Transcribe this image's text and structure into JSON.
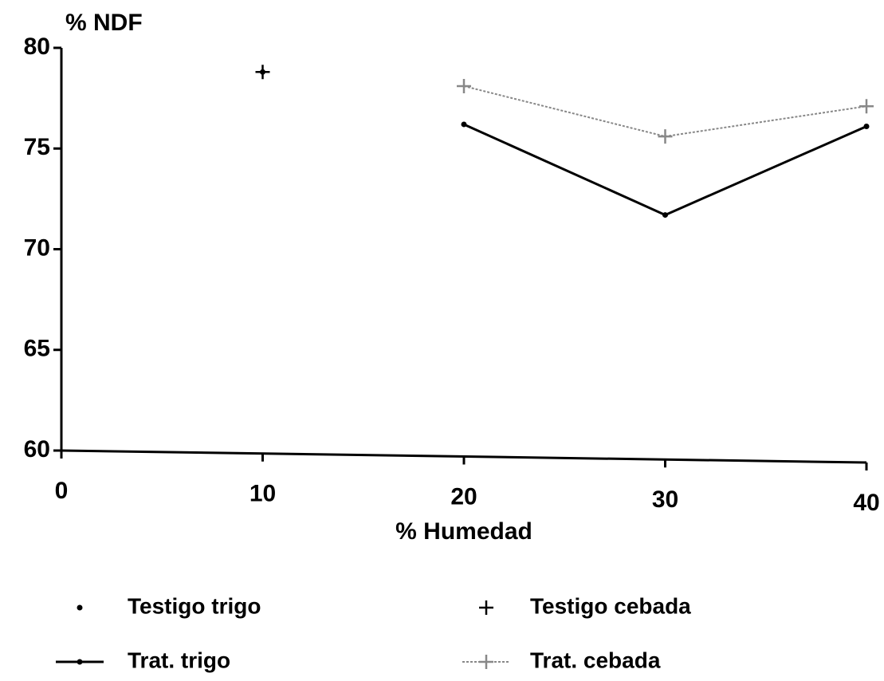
{
  "chart_data": {
    "type": "line",
    "xlabel": "% Humedad",
    "ylabel": "% NDF",
    "xlim": [
      0,
      40
    ],
    "xticks": [
      0,
      10,
      20,
      30,
      40
    ],
    "ylim": [
      60,
      80
    ],
    "yticks": [
      60,
      65,
      70,
      75,
      80
    ],
    "series": [
      {
        "name": "Testigo trigo",
        "color": "#000000",
        "marker": "dot",
        "line": "none",
        "x": [
          10
        ],
        "values": [
          78.8
        ]
      },
      {
        "name": "Testigo cebada",
        "color": "#000000",
        "marker": "plus",
        "line": "none",
        "x": [
          10
        ],
        "values": [
          78.8
        ]
      },
      {
        "name": "Trat. trigo",
        "color": "#000000",
        "marker": "dot",
        "line": "solid",
        "x": [
          20,
          30,
          40
        ],
        "values": [
          76.2,
          71.7,
          76.1
        ]
      },
      {
        "name": "Trat. cebada",
        "color": "#888888",
        "marker": "plus",
        "line": "dotted",
        "x": [
          20,
          30,
          40
        ],
        "values": [
          78.1,
          75.6,
          77.1
        ]
      }
    ]
  }
}
